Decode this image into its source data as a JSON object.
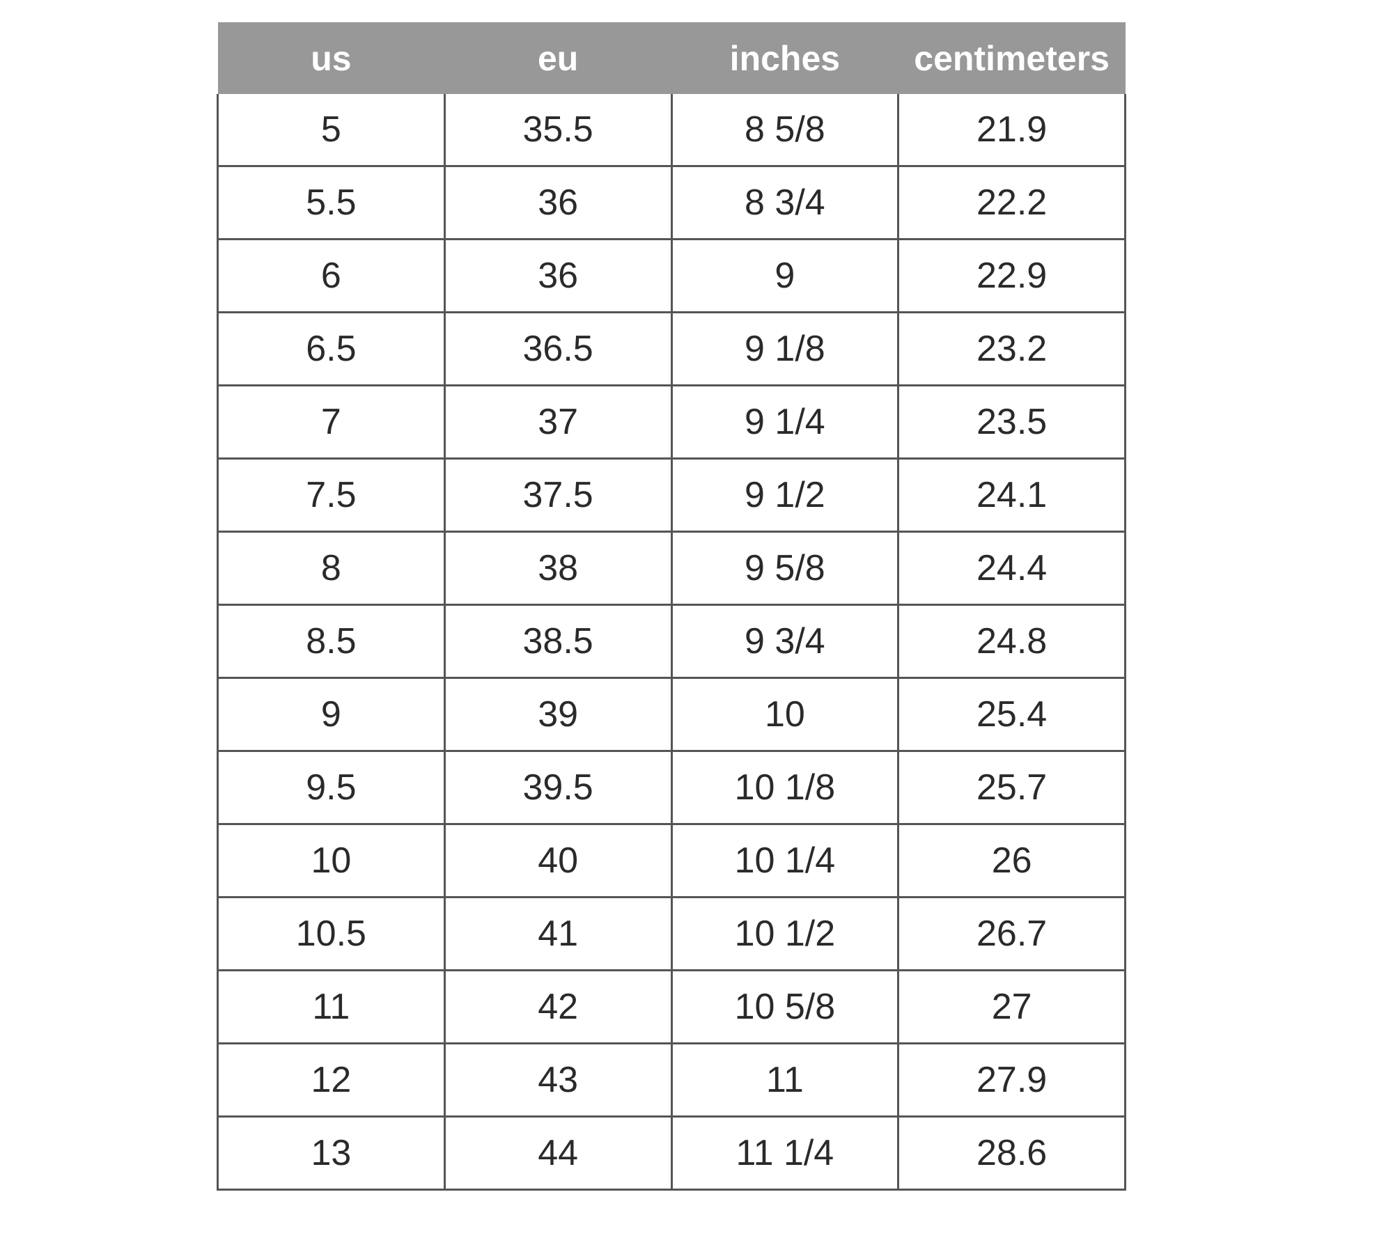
{
  "table": {
    "headers": [
      "us",
      "eu",
      "inches",
      "centimeters"
    ],
    "rows": [
      [
        "5",
        "35.5",
        "8 5/8",
        "21.9"
      ],
      [
        "5.5",
        "36",
        "8 3/4",
        "22.2"
      ],
      [
        "6",
        "36",
        "9",
        "22.9"
      ],
      [
        "6.5",
        "36.5",
        "9 1/8",
        "23.2"
      ],
      [
        "7",
        "37",
        "9 1/4",
        "23.5"
      ],
      [
        "7.5",
        "37.5",
        "9 1/2",
        "24.1"
      ],
      [
        "8",
        "38",
        "9 5/8",
        "24.4"
      ],
      [
        "8.5",
        "38.5",
        "9 3/4",
        "24.8"
      ],
      [
        "9",
        "39",
        "10",
        "25.4"
      ],
      [
        "9.5",
        "39.5",
        "10 1/8",
        "25.7"
      ],
      [
        "10",
        "40",
        "10 1/4",
        "26"
      ],
      [
        "10.5",
        "41",
        "10 1/2",
        "26.7"
      ],
      [
        "11",
        "42",
        "10 5/8",
        "27"
      ],
      [
        "12",
        "43",
        "11",
        "27.9"
      ],
      [
        "13",
        "44",
        "11 1/4",
        "28.6"
      ]
    ]
  },
  "colors": {
    "header_bg": "#989898",
    "header_text": "#ffffff",
    "border": "#555555",
    "text": "#2a2a2a"
  }
}
